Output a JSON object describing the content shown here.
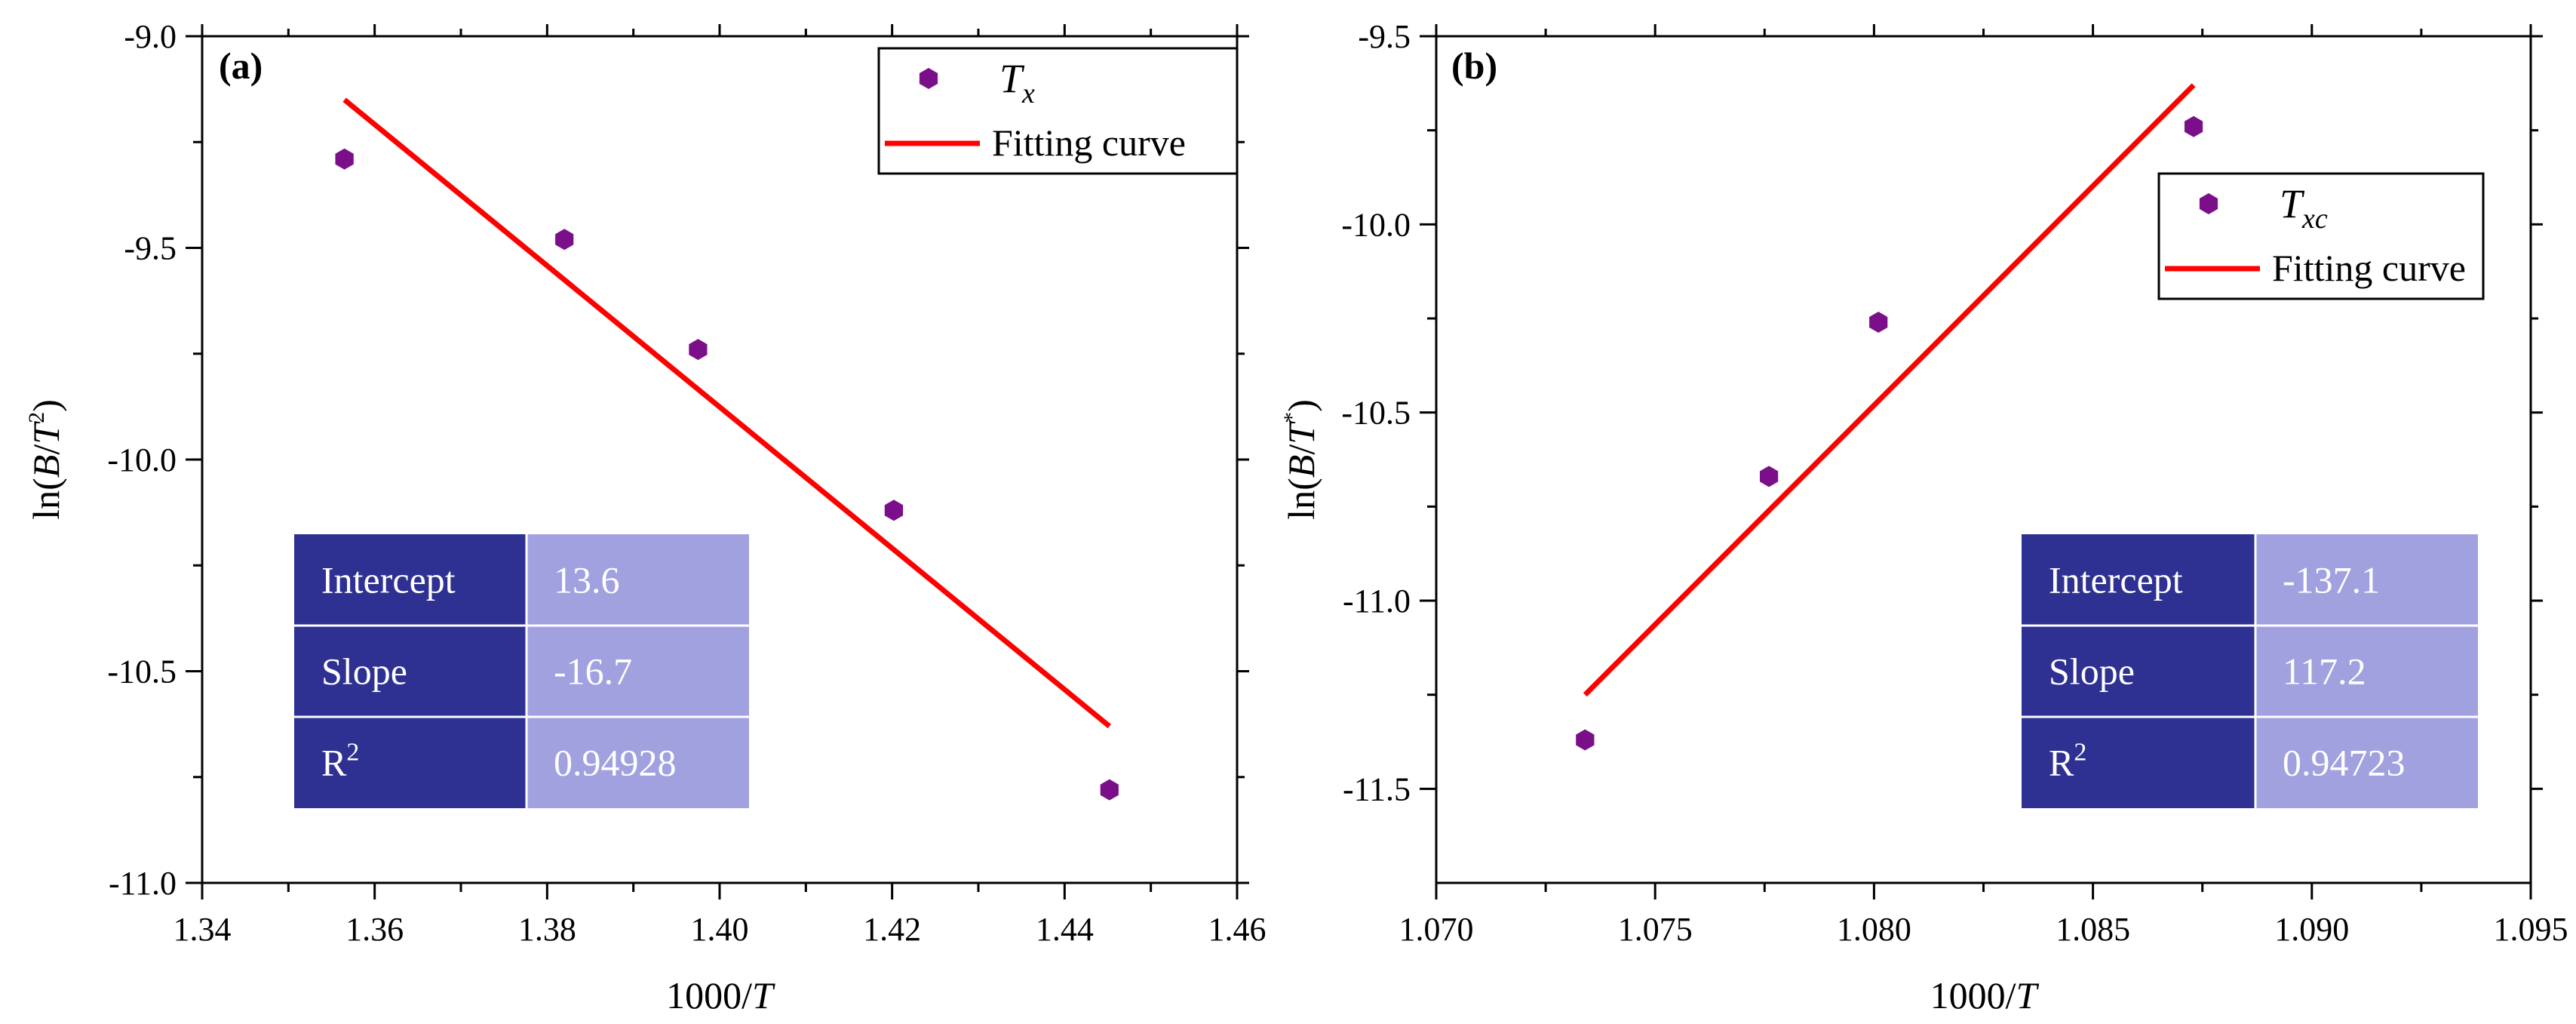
{
  "chart_data": [
    {
      "type": "scatter",
      "panel_label": "(a)",
      "xlabel": "1000/T",
      "ylabel": "ln(B/T²)",
      "xlim": [
        1.34,
        1.46
      ],
      "ylim": [
        -11.0,
        -9.0
      ],
      "x_ticks": [
        "1.34",
        "1.36",
        "1.38",
        "1.40",
        "1.42",
        "1.44",
        "1.46"
      ],
      "y_ticks": [
        "-9.0",
        "-9.5",
        "-10.0",
        "-10.5",
        "-11.0"
      ],
      "series": [
        {
          "name": "Tx",
          "kind": "scatter",
          "color": "#7B0F8A",
          "points": [
            [
              1.3565,
              -9.29
            ],
            [
              1.382,
              -9.48
            ],
            [
              1.3975,
              -9.74
            ],
            [
              1.4202,
              -10.12
            ],
            [
              1.4452,
              -10.78
            ]
          ]
        },
        {
          "name": "Fitting curve",
          "kind": "line",
          "color": "#FF0000",
          "points": [
            [
              1.3565,
              -9.15
            ],
            [
              1.4452,
              -10.63
            ]
          ]
        }
      ],
      "legend": {
        "position": "top-right",
        "entries": [
          {
            "symbol": "T",
            "subscript": "x"
          },
          {
            "text": "Fitting curve"
          }
        ]
      },
      "fit_table": [
        {
          "label": "Intercept",
          "value": "13.6"
        },
        {
          "label": "Slope",
          "value": "-16.7"
        },
        {
          "label": "R",
          "label_sup": "2",
          "value": "0.94928"
        }
      ]
    },
    {
      "type": "scatter",
      "panel_label": "(b)",
      "xlabel": "1000/T",
      "ylabel": "ln(B/T)",
      "xlim": [
        1.07,
        1.095
      ],
      "ylim": [
        -11.75,
        -9.5
      ],
      "x_ticks": [
        "1.070",
        "1.075",
        "1.080",
        "1.085",
        "1.090",
        "1.095"
      ],
      "y_ticks": [
        "-9.5",
        "-10.0",
        "-10.5",
        "-11.0",
        "-11.5"
      ],
      "series": [
        {
          "name": "Txc",
          "kind": "scatter",
          "color": "#7B0F8A",
          "points": [
            [
              1.0734,
              -11.37
            ],
            [
              1.0776,
              -10.67
            ],
            [
              1.0801,
              -10.26
            ],
            [
              1.0873,
              -9.74
            ]
          ]
        },
        {
          "name": "Fitting curve",
          "kind": "line",
          "color": "#FF0000",
          "points": [
            [
              1.0734,
              -11.25
            ],
            [
              1.0873,
              -9.63
            ]
          ]
        }
      ],
      "legend": {
        "position": "upper-right",
        "entries": [
          {
            "symbol": "T",
            "subscript": "xc"
          },
          {
            "text": "Fitting curve"
          }
        ]
      },
      "fit_table": [
        {
          "label": "Intercept",
          "value": "-137.1"
        },
        {
          "label": "Slope",
          "value": "117.2"
        },
        {
          "label": "R",
          "label_sup": "2",
          "value": "0.94723"
        }
      ]
    }
  ],
  "colors": {
    "table_label_bg": "#2E3192",
    "table_value_bg": "#A1A1E0",
    "table_text": "#FFFFFF"
  }
}
